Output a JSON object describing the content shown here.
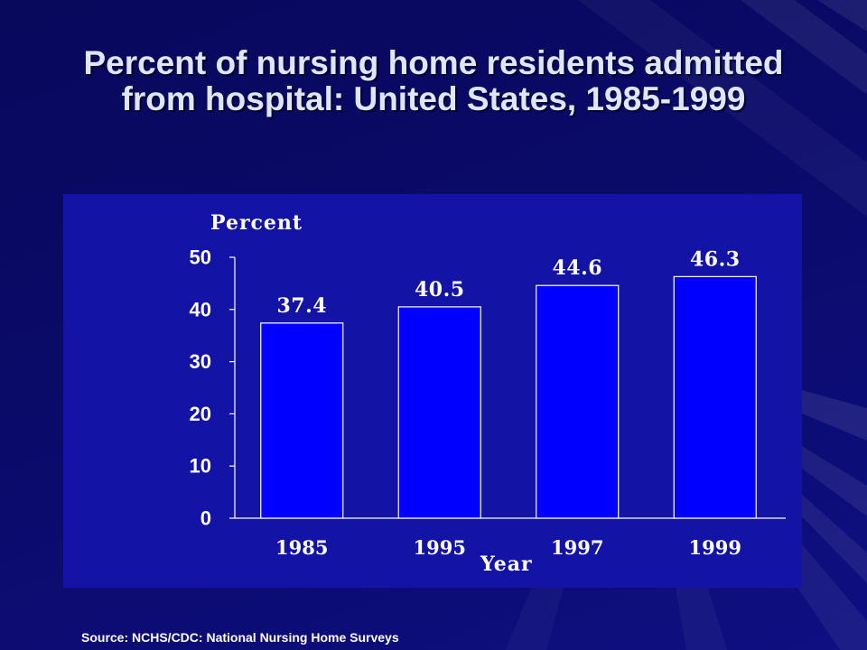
{
  "slide": {
    "source": "Source: NCHS/CDC: National Nursing Home Surveys"
  },
  "colors": {
    "background": "#0b0b6e",
    "chart_panel": "#1313a6",
    "bar_fill": "#0000ff",
    "bar_outline": "#ffffff",
    "axis": "#ffffff",
    "title_text": "#dfe6ff",
    "chart_text": "#ffffff"
  },
  "chart_data": {
    "type": "bar",
    "title": [
      "Percent of nursing home residents admitted",
      "from hospital: United States, 1985-1999"
    ],
    "xlabel": "Year",
    "ylabel": "Percent",
    "categories": [
      "1985",
      "1995",
      "1997",
      "1999"
    ],
    "values": [
      37.4,
      40.5,
      44.6,
      46.3
    ],
    "ylim": [
      0,
      50
    ],
    "yticks": [
      0,
      10,
      20,
      30,
      40,
      50
    ],
    "show_data_labels": true,
    "grid": false,
    "legend": false
  }
}
